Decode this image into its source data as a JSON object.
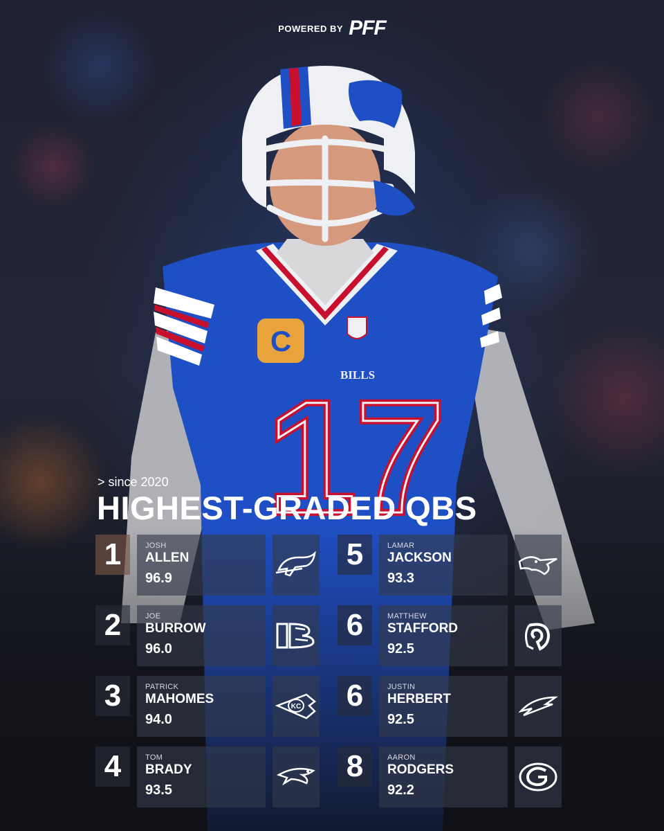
{
  "brand": {
    "powered_by": "POWERED BY",
    "logo_text": "PFF"
  },
  "heading": {
    "subtitle": "> since 2020",
    "title": "HIGHEST-GRADED QBS"
  },
  "player_art": {
    "team_wordmark": "BILLS",
    "jersey_number": "17",
    "captain_patch": "C"
  },
  "rankings": [
    {
      "rank": "1",
      "first": "JOSH",
      "last": "ALLEN",
      "grade": "96.9",
      "team_icon": "bills-logo-icon"
    },
    {
      "rank": "2",
      "first": "JOE",
      "last": "BURROW",
      "grade": "96.0",
      "team_icon": "bengals-logo-icon"
    },
    {
      "rank": "3",
      "first": "PATRICK",
      "last": "MAHOMES",
      "grade": "94.0",
      "team_icon": "chiefs-logo-icon"
    },
    {
      "rank": "4",
      "first": "TOM",
      "last": "BRADY",
      "grade": "93.5",
      "team_icon": "patriots-logo-icon"
    },
    {
      "rank": "5",
      "first": "LAMAR",
      "last": "JACKSON",
      "grade": "93.3",
      "team_icon": "ravens-logo-icon"
    },
    {
      "rank": "6",
      "first": "MATTHEW",
      "last": "STAFFORD",
      "grade": "92.5",
      "team_icon": "rams-logo-icon"
    },
    {
      "rank": "6",
      "first": "JUSTIN",
      "last": "HERBERT",
      "grade": "92.5",
      "team_icon": "chargers-logo-icon"
    },
    {
      "rank": "8",
      "first": "AARON",
      "last": "RODGERS",
      "grade": "92.2",
      "team_icon": "packers-logo-icon"
    }
  ],
  "colors": {
    "bills_blue": "#1f4fc4",
    "bills_red": "#c8102e",
    "helmet_white": "#eef0f4",
    "captain_gold": "#e8a33d",
    "card_bg": "#343a4a"
  }
}
